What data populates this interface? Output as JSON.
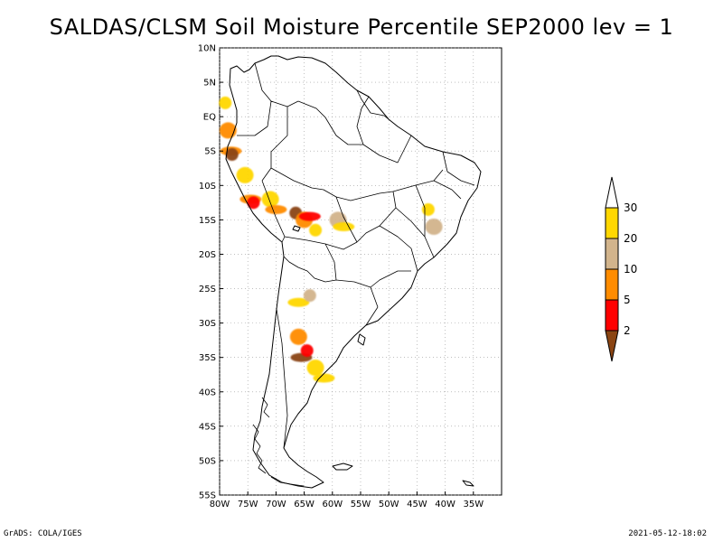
{
  "title": "SALDAS/CLSM Soil Moisture Percentile SEP2000 lev = 1",
  "map": {
    "lon_range": [
      -80,
      -30
    ],
    "lat_range": [
      -55,
      10
    ],
    "lat_ticks": [
      {
        "value": 10,
        "label": "10N"
      },
      {
        "value": 5,
        "label": "5N"
      },
      {
        "value": 0,
        "label": "EQ"
      },
      {
        "value": -5,
        "label": "5S"
      },
      {
        "value": -10,
        "label": "10S"
      },
      {
        "value": -15,
        "label": "15S"
      },
      {
        "value": -20,
        "label": "20S"
      },
      {
        "value": -25,
        "label": "25S"
      },
      {
        "value": -30,
        "label": "30S"
      },
      {
        "value": -35,
        "label": "35S"
      },
      {
        "value": -40,
        "label": "40S"
      },
      {
        "value": -45,
        "label": "45S"
      },
      {
        "value": -50,
        "label": "50S"
      },
      {
        "value": -55,
        "label": "55S"
      }
    ],
    "lon_ticks": [
      {
        "value": -80,
        "label": "80W"
      },
      {
        "value": -75,
        "label": "75W"
      },
      {
        "value": -70,
        "label": "70W"
      },
      {
        "value": -65,
        "label": "65W"
      },
      {
        "value": -60,
        "label": "60W"
      },
      {
        "value": -55,
        "label": "55W"
      },
      {
        "value": -50,
        "label": "50W"
      },
      {
        "value": -45,
        "label": "45W"
      },
      {
        "value": -40,
        "label": "40W"
      },
      {
        "value": -35,
        "label": "35W"
      }
    ],
    "grid": "dotted",
    "coastline_color": "#000000",
    "regions": [
      {
        "class": "20-30",
        "lon": -79.0,
        "lat": 2.0
      },
      {
        "class": "5-10",
        "lon": -78.5,
        "lat": -2.0
      },
      {
        "class": "5-10",
        "lon": -78.0,
        "lat": -5.0
      },
      {
        "class": "<2",
        "lon": -77.8,
        "lat": -5.5
      },
      {
        "class": "20-30",
        "lon": -75.5,
        "lat": -8.5
      },
      {
        "class": "5-10",
        "lon": -74.5,
        "lat": -12.0
      },
      {
        "class": "2-5",
        "lon": -74.0,
        "lat": -12.5
      },
      {
        "class": "20-30",
        "lon": -71.0,
        "lat": -12.0
      },
      {
        "class": "5-10",
        "lon": -70.0,
        "lat": -13.5
      },
      {
        "class": "<2",
        "lon": -66.5,
        "lat": -14.0
      },
      {
        "class": "5-10",
        "lon": -65.0,
        "lat": -15.0
      },
      {
        "class": "2-5",
        "lon": -64.0,
        "lat": -14.5
      },
      {
        "class": "20-30",
        "lon": -63.0,
        "lat": -16.5
      },
      {
        "class": "10-20",
        "lon": -59.0,
        "lat": -15.0
      },
      {
        "class": "20-30",
        "lon": -58.0,
        "lat": -16.0
      },
      {
        "class": "20-30",
        "lon": -43.0,
        "lat": -13.5
      },
      {
        "class": "10-20",
        "lon": -42.0,
        "lat": -16.0
      },
      {
        "class": "20-30",
        "lon": -66.0,
        "lat": -27.0
      },
      {
        "class": "10-20",
        "lon": -64.0,
        "lat": -26.0
      },
      {
        "class": "5-10",
        "lon": -66.0,
        "lat": -32.0
      },
      {
        "class": "<2",
        "lon": -65.5,
        "lat": -35.0
      },
      {
        "class": "2-5",
        "lon": -64.5,
        "lat": -34.0
      },
      {
        "class": "20-30",
        "lon": -63.0,
        "lat": -36.5
      },
      {
        "class": "20-30",
        "lon": -61.5,
        "lat": -38.0
      }
    ]
  },
  "colorbar": {
    "boundaries": [
      "2",
      "5",
      "10",
      "20",
      "30"
    ],
    "classes": [
      {
        "name": "<2",
        "color": "#8b4513"
      },
      {
        "name": "2-5",
        "color": "#ff0000"
      },
      {
        "name": "5-10",
        "color": "#ff8c00"
      },
      {
        "name": "10-20",
        "color": "#d2b48c"
      },
      {
        "name": "20-30",
        "color": "#ffd700"
      },
      {
        "name": ">30",
        "color": "#ffffff"
      }
    ]
  },
  "footer": {
    "left": "GrADS: COLA/IGES",
    "right": "2021-05-12-18:02"
  }
}
